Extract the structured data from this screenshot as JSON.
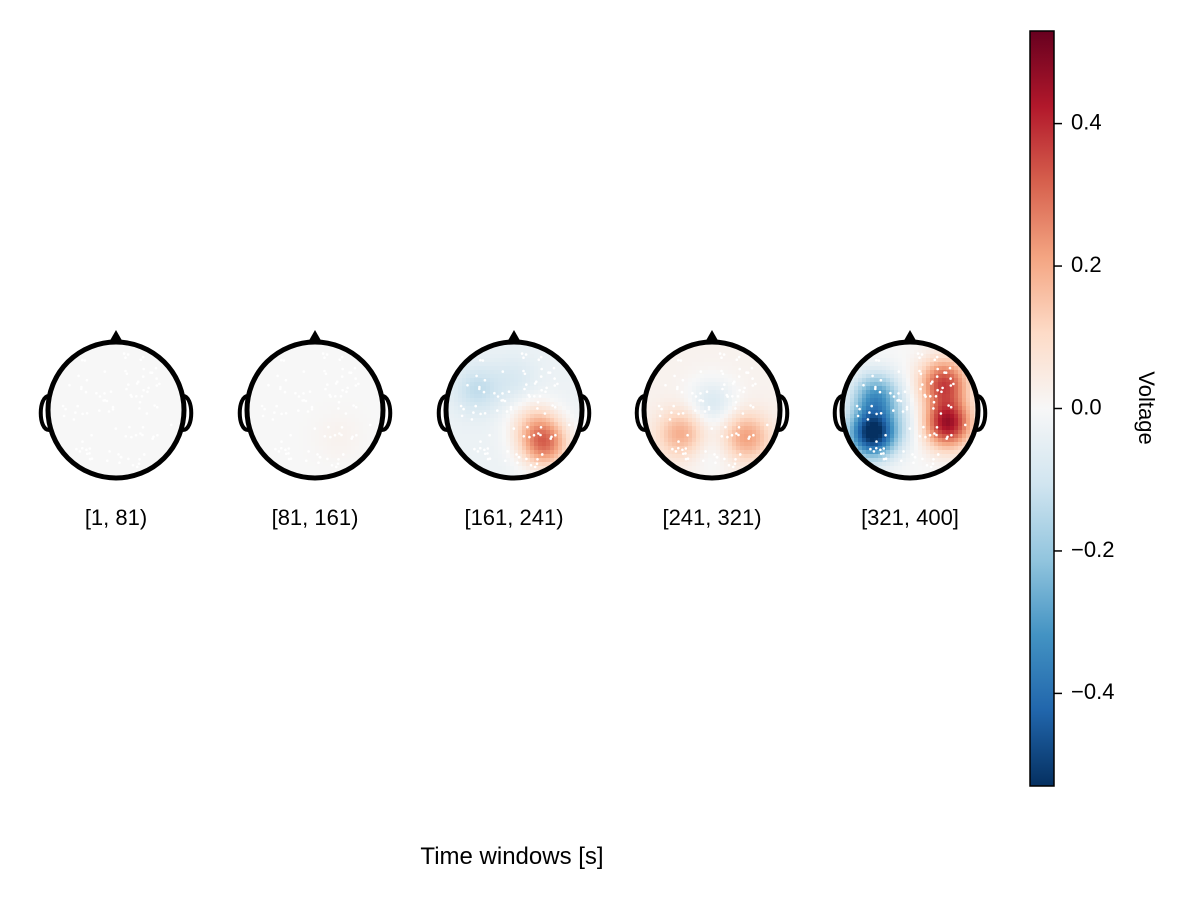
{
  "chart_data": {
    "type": "heatmap",
    "subtype": "eeg-topoplot-series",
    "xlabel": "Time windows [s]",
    "colorbar": {
      "label": "Voltage",
      "colormap": "RdBu (reversed)",
      "range": [
        -0.53,
        0.53
      ],
      "ticks": [
        {
          "value": 0.4,
          "label": "0.4"
        },
        {
          "value": 0.2,
          "label": "0.2"
        },
        {
          "value": 0.0,
          "label": "0.0"
        },
        {
          "value": -0.2,
          "label": "−0.2"
        },
        {
          "value": -0.4,
          "label": "−0.4"
        }
      ],
      "colors": [
        "#053061",
        "#2166ac",
        "#4393c3",
        "#92c5de",
        "#d1e5f0",
        "#f7f7f7",
        "#fddbc7",
        "#f4a582",
        "#d6604d",
        "#b2182b",
        "#67001f"
      ]
    },
    "panels": [
      {
        "label": "[1, 81)",
        "base": 0.0,
        "blobs": []
      },
      {
        "label": "[81, 161)",
        "base": 0.0,
        "blobs": [
          {
            "x": 0.35,
            "y": 0.4,
            "amp": 0.02
          }
        ]
      },
      {
        "label": "[161, 241)",
        "base": -0.03,
        "blobs": [
          {
            "x": 0.45,
            "y": 0.5,
            "amp": 0.3
          },
          {
            "x": 0.3,
            "y": 0.2,
            "amp": 0.12
          },
          {
            "x": -0.55,
            "y": -0.3,
            "amp": -0.1
          },
          {
            "x": 0.0,
            "y": -0.45,
            "amp": -0.05
          }
        ]
      },
      {
        "label": "[241, 321)",
        "base": 0.02,
        "blobs": [
          {
            "x": -0.45,
            "y": 0.35,
            "amp": 0.18
          },
          {
            "x": 0.5,
            "y": 0.4,
            "amp": 0.2
          },
          {
            "x": 0.0,
            "y": -0.1,
            "amp": -0.1
          },
          {
            "x": 0.0,
            "y": 0.6,
            "amp": -0.04
          }
        ]
      },
      {
        "label": "[321, 400]",
        "base": 0.0,
        "blobs": [
          {
            "x": -0.55,
            "y": 0.35,
            "amp": -0.55
          },
          {
            "x": -0.5,
            "y": -0.2,
            "amp": -0.3
          },
          {
            "x": 0.55,
            "y": 0.2,
            "amp": 0.45
          },
          {
            "x": 0.5,
            "y": -0.4,
            "amp": 0.35
          },
          {
            "x": 0.0,
            "y": 0.2,
            "amp": -0.05
          }
        ]
      }
    ]
  }
}
